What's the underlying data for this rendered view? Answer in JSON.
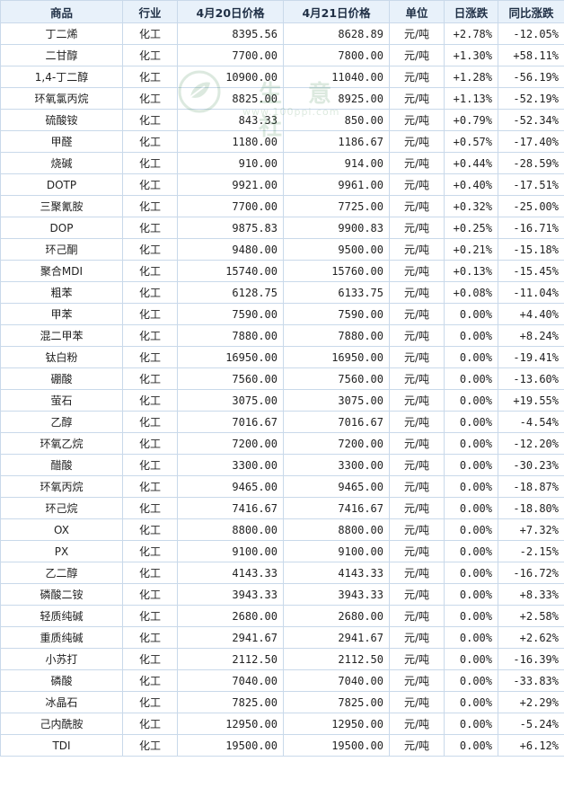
{
  "table": {
    "headers": [
      "商品",
      "行业",
      "4月20日价格",
      "4月21日价格",
      "单位",
      "日涨跌",
      "同比涨跌"
    ],
    "rows": [
      {
        "name": "丁二烯",
        "industry": "化工",
        "p1": "8395.56",
        "p2": "8628.89",
        "unit": "元/吨",
        "day": "+2.78%",
        "day_dir": "up",
        "yoy": "-12.05%",
        "yoy_dir": "down"
      },
      {
        "name": "二甘醇",
        "industry": "化工",
        "p1": "7700.00",
        "p2": "7800.00",
        "unit": "元/吨",
        "day": "+1.30%",
        "day_dir": "up",
        "yoy": "+58.11%",
        "yoy_dir": "up"
      },
      {
        "name": "1,4-丁二醇",
        "industry": "化工",
        "p1": "10900.00",
        "p2": "11040.00",
        "unit": "元/吨",
        "day": "+1.28%",
        "day_dir": "up",
        "yoy": "-56.19%",
        "yoy_dir": "down"
      },
      {
        "name": "环氧氯丙烷",
        "industry": "化工",
        "p1": "8825.00",
        "p2": "8925.00",
        "unit": "元/吨",
        "day": "+1.13%",
        "day_dir": "up",
        "yoy": "-52.19%",
        "yoy_dir": "down"
      },
      {
        "name": "硫酸铵",
        "industry": "化工",
        "p1": "843.33",
        "p2": "850.00",
        "unit": "元/吨",
        "day": "+0.79%",
        "day_dir": "up",
        "yoy": "-52.34%",
        "yoy_dir": "down"
      },
      {
        "name": "甲醛",
        "industry": "化工",
        "p1": "1180.00",
        "p2": "1186.67",
        "unit": "元/吨",
        "day": "+0.57%",
        "day_dir": "up",
        "yoy": "-17.40%",
        "yoy_dir": "down"
      },
      {
        "name": "烧碱",
        "industry": "化工",
        "p1": "910.00",
        "p2": "914.00",
        "unit": "元/吨",
        "day": "+0.44%",
        "day_dir": "up",
        "yoy": "-28.59%",
        "yoy_dir": "down"
      },
      {
        "name": "DOTP",
        "industry": "化工",
        "p1": "9921.00",
        "p2": "9961.00",
        "unit": "元/吨",
        "day": "+0.40%",
        "day_dir": "up",
        "yoy": "-17.51%",
        "yoy_dir": "down"
      },
      {
        "name": "三聚氰胺",
        "industry": "化工",
        "p1": "7700.00",
        "p2": "7725.00",
        "unit": "元/吨",
        "day": "+0.32%",
        "day_dir": "up",
        "yoy": "-25.00%",
        "yoy_dir": "down"
      },
      {
        "name": "DOP",
        "industry": "化工",
        "p1": "9875.83",
        "p2": "9900.83",
        "unit": "元/吨",
        "day": "+0.25%",
        "day_dir": "up",
        "yoy": "-16.71%",
        "yoy_dir": "down"
      },
      {
        "name": "环己酮",
        "industry": "化工",
        "p1": "9480.00",
        "p2": "9500.00",
        "unit": "元/吨",
        "day": "+0.21%",
        "day_dir": "up",
        "yoy": "-15.18%",
        "yoy_dir": "down"
      },
      {
        "name": "聚合MDI",
        "industry": "化工",
        "p1": "15740.00",
        "p2": "15760.00",
        "unit": "元/吨",
        "day": "+0.13%",
        "day_dir": "up",
        "yoy": "-15.45%",
        "yoy_dir": "down"
      },
      {
        "name": "粗苯",
        "industry": "化工",
        "p1": "6128.75",
        "p2": "6133.75",
        "unit": "元/吨",
        "day": "+0.08%",
        "day_dir": "up",
        "yoy": "-11.04%",
        "yoy_dir": "down"
      },
      {
        "name": "甲苯",
        "industry": "化工",
        "p1": "7590.00",
        "p2": "7590.00",
        "unit": "元/吨",
        "day": "0.00%",
        "day_dir": "flat",
        "yoy": "+4.40%",
        "yoy_dir": "up"
      },
      {
        "name": "混二甲苯",
        "industry": "化工",
        "p1": "7880.00",
        "p2": "7880.00",
        "unit": "元/吨",
        "day": "0.00%",
        "day_dir": "flat",
        "yoy": "+8.24%",
        "yoy_dir": "up"
      },
      {
        "name": "钛白粉",
        "industry": "化工",
        "p1": "16950.00",
        "p2": "16950.00",
        "unit": "元/吨",
        "day": "0.00%",
        "day_dir": "flat",
        "yoy": "-19.41%",
        "yoy_dir": "down"
      },
      {
        "name": "硼酸",
        "industry": "化工",
        "p1": "7560.00",
        "p2": "7560.00",
        "unit": "元/吨",
        "day": "0.00%",
        "day_dir": "flat",
        "yoy": "-13.60%",
        "yoy_dir": "down"
      },
      {
        "name": "萤石",
        "industry": "化工",
        "p1": "3075.00",
        "p2": "3075.00",
        "unit": "元/吨",
        "day": "0.00%",
        "day_dir": "flat",
        "yoy": "+19.55%",
        "yoy_dir": "up"
      },
      {
        "name": "乙醇",
        "industry": "化工",
        "p1": "7016.67",
        "p2": "7016.67",
        "unit": "元/吨",
        "day": "0.00%",
        "day_dir": "flat",
        "yoy": "-4.54%",
        "yoy_dir": "down"
      },
      {
        "name": "环氧乙烷",
        "industry": "化工",
        "p1": "7200.00",
        "p2": "7200.00",
        "unit": "元/吨",
        "day": "0.00%",
        "day_dir": "flat",
        "yoy": "-12.20%",
        "yoy_dir": "down"
      },
      {
        "name": "醋酸",
        "industry": "化工",
        "p1": "3300.00",
        "p2": "3300.00",
        "unit": "元/吨",
        "day": "0.00%",
        "day_dir": "flat",
        "yoy": "-30.23%",
        "yoy_dir": "down"
      },
      {
        "name": "环氧丙烷",
        "industry": "化工",
        "p1": "9465.00",
        "p2": "9465.00",
        "unit": "元/吨",
        "day": "0.00%",
        "day_dir": "flat",
        "yoy": "-18.87%",
        "yoy_dir": "down"
      },
      {
        "name": "环己烷",
        "industry": "化工",
        "p1": "7416.67",
        "p2": "7416.67",
        "unit": "元/吨",
        "day": "0.00%",
        "day_dir": "flat",
        "yoy": "-18.80%",
        "yoy_dir": "down"
      },
      {
        "name": "OX",
        "industry": "化工",
        "p1": "8800.00",
        "p2": "8800.00",
        "unit": "元/吨",
        "day": "0.00%",
        "day_dir": "flat",
        "yoy": "+7.32%",
        "yoy_dir": "up"
      },
      {
        "name": "PX",
        "industry": "化工",
        "p1": "9100.00",
        "p2": "9100.00",
        "unit": "元/吨",
        "day": "0.00%",
        "day_dir": "flat",
        "yoy": "-2.15%",
        "yoy_dir": "down"
      },
      {
        "name": "乙二醇",
        "industry": "化工",
        "p1": "4143.33",
        "p2": "4143.33",
        "unit": "元/吨",
        "day": "0.00%",
        "day_dir": "flat",
        "yoy": "-16.72%",
        "yoy_dir": "down"
      },
      {
        "name": "磷酸二铵",
        "industry": "化工",
        "p1": "3943.33",
        "p2": "3943.33",
        "unit": "元/吨",
        "day": "0.00%",
        "day_dir": "flat",
        "yoy": "+8.33%",
        "yoy_dir": "up"
      },
      {
        "name": "轻质纯碱",
        "industry": "化工",
        "p1": "2680.00",
        "p2": "2680.00",
        "unit": "元/吨",
        "day": "0.00%",
        "day_dir": "flat",
        "yoy": "+2.58%",
        "yoy_dir": "up"
      },
      {
        "name": "重质纯碱",
        "industry": "化工",
        "p1": "2941.67",
        "p2": "2941.67",
        "unit": "元/吨",
        "day": "0.00%",
        "day_dir": "flat",
        "yoy": "+2.62%",
        "yoy_dir": "up"
      },
      {
        "name": "小苏打",
        "industry": "化工",
        "p1": "2112.50",
        "p2": "2112.50",
        "unit": "元/吨",
        "day": "0.00%",
        "day_dir": "flat",
        "yoy": "-16.39%",
        "yoy_dir": "down"
      },
      {
        "name": "磷酸",
        "industry": "化工",
        "p1": "7040.00",
        "p2": "7040.00",
        "unit": "元/吨",
        "day": "0.00%",
        "day_dir": "flat",
        "yoy": "-33.83%",
        "yoy_dir": "down"
      },
      {
        "name": "冰晶石",
        "industry": "化工",
        "p1": "7825.00",
        "p2": "7825.00",
        "unit": "元/吨",
        "day": "0.00%",
        "day_dir": "flat",
        "yoy": "+2.29%",
        "yoy_dir": "up"
      },
      {
        "name": "己内酰胺",
        "industry": "化工",
        "p1": "12950.00",
        "p2": "12950.00",
        "unit": "元/吨",
        "day": "0.00%",
        "day_dir": "flat",
        "yoy": "-5.24%",
        "yoy_dir": "down"
      },
      {
        "name": "TDI",
        "industry": "化工",
        "p1": "19500.00",
        "p2": "19500.00",
        "unit": "元/吨",
        "day": "0.00%",
        "day_dir": "flat",
        "yoy": "+6.12%",
        "yoy_dir": "up"
      }
    ]
  },
  "watermark": {
    "brand": "生 意 社",
    "url": "www.100ppi.com",
    "logo_icon": "leaf-logo-icon",
    "color": "#2f7e3f"
  },
  "colors": {
    "up": "#e00000",
    "down": "#0a8a0a",
    "header_bg": "#e8f1fa",
    "border": "#c9d9ea",
    "name_text": "#1f4f8f"
  }
}
